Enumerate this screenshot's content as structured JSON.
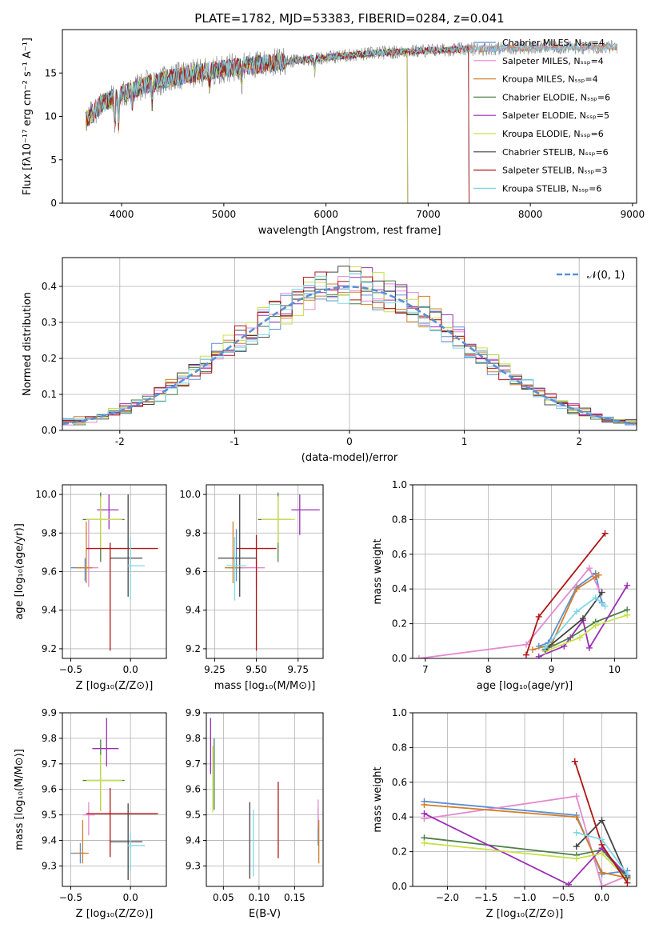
{
  "figure": {
    "title": "PLATE=1782, MJD=53383, FIBERID=0284, z=0.041"
  },
  "colors": {
    "Chabrier MILES": "#5b8fd6",
    "Salpeter MILES": "#e38ad0",
    "Kroupa MILES": "#d1802a",
    "Chabrier ELODIE": "#4a7f4a",
    "Salpeter ELODIE": "#9b2fb4",
    "Kroupa ELODIE": "#c9e04a",
    "Chabrier STELIB": "#444444",
    "Salpeter STELIB": "#b01515",
    "Kroupa STELIB": "#7dd8e6",
    "gaussian": "#5b8fd6",
    "data": "#808080"
  },
  "chart_data": [
    {
      "id": "spectrum",
      "type": "line",
      "xlabel": "wavelength [Angstrom, rest frame]",
      "ylabel": "Flux [fλ10⁻¹⁷ erg cm⁻² s⁻¹ A⁻¹]",
      "xlim": [
        3420,
        9040
      ],
      "ylim": [
        0,
        20
      ],
      "xticks": [
        4000,
        5000,
        6000,
        7000,
        8000,
        9000
      ],
      "yticks": [
        0,
        5,
        10,
        15
      ],
      "grid": false,
      "legend_position": "top-right",
      "series": [
        {
          "name": "Chabrier MILES, Nₛₛₚ=4",
          "key": "Chabrier MILES",
          "range": [
            3650,
            8850
          ]
        },
        {
          "name": "Salpeter MILES, Nₛₛₚ=4",
          "key": "Salpeter MILES",
          "range": [
            3650,
            8850
          ]
        },
        {
          "name": "Kroupa MILES, Nₛₛₚ=4",
          "key": "Kroupa MILES",
          "range": [
            3650,
            8850
          ]
        },
        {
          "name": "Chabrier ELODIE, Nₛₛₚ=6",
          "key": "Chabrier ELODIE",
          "range": [
            3650,
            6800
          ]
        },
        {
          "name": "Salpeter ELODIE, Nₛₛₚ=5",
          "key": "Salpeter ELODIE",
          "range": [
            3650,
            6800
          ]
        },
        {
          "name": "Kroupa ELODIE, Nₛₛₚ=6",
          "key": "Kroupa ELODIE",
          "range": [
            3650,
            6800
          ]
        },
        {
          "name": "Chabrier STELIB, Nₛₛₚ=6",
          "key": "Chabrier STELIB",
          "range": [
            3650,
            7400
          ]
        },
        {
          "name": "Salpeter STELIB, Nₛₛₚ=3",
          "key": "Salpeter STELIB",
          "range": [
            3650,
            7400
          ]
        },
        {
          "name": "Kroupa STELIB, Nₛₛₚ=6",
          "key": "Kroupa STELIB",
          "range": [
            3650,
            8850
          ]
        }
      ],
      "continuum": [
        [
          3650,
          9.5
        ],
        [
          3800,
          11.5
        ],
        [
          4000,
          12.5
        ],
        [
          4200,
          13.5
        ],
        [
          4500,
          14.5
        ],
        [
          5000,
          15.5
        ],
        [
          5500,
          16.2
        ],
        [
          6000,
          16.8
        ],
        [
          6500,
          17.3
        ],
        [
          7000,
          17.6
        ],
        [
          7500,
          17.8
        ],
        [
          8000,
          17.9
        ],
        [
          8850,
          18.0
        ]
      ]
    },
    {
      "id": "residuals",
      "type": "line",
      "xlabel": "(data-model)/error",
      "ylabel": "Normed distribution",
      "xlim": [
        -2.5,
        2.5
      ],
      "ylim": [
        0,
        0.48
      ],
      "xticks": [
        -2,
        -1,
        0,
        1,
        2
      ],
      "yticks": [
        0.0,
        0.1,
        0.2,
        0.3,
        0.4
      ],
      "grid": true,
      "legend_position": "top-right",
      "legend": "𝒩(0, 1)",
      "bin_width": 0.1
    },
    {
      "id": "age-vs-z",
      "type": "scatter",
      "xlabel": "Z [log₁₀(Z/Z⊙)]",
      "ylabel": "age  [log₁₀(age/yr)]",
      "xlim": [
        -0.57,
        0.3
      ],
      "ylim": [
        9.15,
        10.05
      ],
      "xticks": [
        -0.5,
        0.0
      ],
      "yticks": [
        9.2,
        9.4,
        9.6,
        9.8,
        10.0
      ],
      "grid": true,
      "points": [
        {
          "key": "Chabrier MILES",
          "x": -0.38,
          "y": 9.62,
          "xerr": [
            0.12,
            0.05
          ],
          "yerr": [
            0.07,
            0.05
          ]
        },
        {
          "key": "Salpeter MILES",
          "x": -0.35,
          "y": 9.62,
          "xerr": [
            0.05,
            0.08
          ],
          "yerr": [
            0.1,
            0.25
          ]
        },
        {
          "key": "Kroupa MILES",
          "x": -0.37,
          "y": 9.62,
          "xerr": [
            0.08,
            0.05
          ],
          "yerr": [
            0.08,
            0.24
          ]
        },
        {
          "key": "Chabrier ELODIE",
          "x": -0.25,
          "y": 9.87,
          "xerr": [
            0.15,
            0.2
          ],
          "yerr": [
            0.22,
            0.14
          ]
        },
        {
          "key": "Salpeter ELODIE",
          "x": -0.18,
          "y": 9.92,
          "xerr": [
            0.1,
            0.08
          ],
          "yerr": [
            0.1,
            0.08
          ]
        },
        {
          "key": "Kroupa ELODIE",
          "x": -0.25,
          "y": 9.87,
          "xerr": [
            0.12,
            0.18
          ],
          "yerr": [
            0.15,
            0.12
          ]
        },
        {
          "key": "Chabrier STELIB",
          "x": -0.02,
          "y": 9.67,
          "xerr": [
            0.15,
            0.12
          ],
          "yerr": [
            0.2,
            0.33
          ]
        },
        {
          "key": "Salpeter STELIB",
          "x": -0.17,
          "y": 9.72,
          "xerr": [
            0.2,
            0.4
          ],
          "yerr": [
            0.53,
            0.03
          ]
        },
        {
          "key": "Kroupa STELIB",
          "x": 0.0,
          "y": 9.63,
          "xerr": [
            0.03,
            0.12
          ],
          "yerr": [
            0.18,
            0.15
          ]
        }
      ]
    },
    {
      "id": "age-vs-mass",
      "type": "scatter",
      "xlabel": "mass [log₁₀(M/M⊙)]",
      "ylabel": "",
      "xlim": [
        9.2,
        9.9
      ],
      "ylim": [
        9.15,
        10.05
      ],
      "xticks": [
        9.25,
        9.5,
        9.75
      ],
      "yticks": [
        9.2,
        9.4,
        9.6,
        9.8,
        10.0
      ],
      "grid": true,
      "points": [
        {
          "key": "Chabrier MILES",
          "x": 9.38,
          "y": 9.62,
          "xerr": [
            0.05,
            0.05
          ],
          "yerr": [
            0.07,
            0.2
          ]
        },
        {
          "key": "Salpeter MILES",
          "x": 9.5,
          "y": 9.62,
          "xerr": [
            0.12,
            0.05
          ],
          "yerr": [
            0.1,
            0.05
          ]
        },
        {
          "key": "Kroupa MILES",
          "x": 9.36,
          "y": 9.62,
          "xerr": [
            0.05,
            0.05
          ],
          "yerr": [
            0.08,
            0.24
          ]
        },
        {
          "key": "Chabrier ELODIE",
          "x": 9.63,
          "y": 9.87,
          "xerr": [
            0.12,
            0.08
          ],
          "yerr": [
            0.22,
            0.14
          ]
        },
        {
          "key": "Salpeter ELODIE",
          "x": 9.76,
          "y": 9.92,
          "xerr": [
            0.05,
            0.12
          ],
          "yerr": [
            0.13,
            0.08
          ]
        },
        {
          "key": "Kroupa ELODIE",
          "x": 9.63,
          "y": 9.87,
          "xerr": [
            0.1,
            0.1
          ],
          "yerr": [
            0.12,
            0.12
          ]
        },
        {
          "key": "Chabrier STELIB",
          "x": 9.4,
          "y": 9.67,
          "xerr": [
            0.13,
            0.1
          ],
          "yerr": [
            0.2,
            0.33
          ]
        },
        {
          "key": "Salpeter STELIB",
          "x": 9.5,
          "y": 9.72,
          "xerr": [
            0.12,
            0.12
          ],
          "yerr": [
            0.53,
            0.07
          ]
        },
        {
          "key": "Kroupa STELIB",
          "x": 9.37,
          "y": 9.63,
          "xerr": [
            0.05,
            0.07
          ],
          "yerr": [
            0.18,
            0.15
          ]
        }
      ]
    },
    {
      "id": "weight-vs-age",
      "type": "line",
      "xlabel": "age  [log₁₀(age/yr)]",
      "ylabel": "mass weight",
      "xlim": [
        6.8,
        10.35
      ],
      "ylim": [
        0,
        1.0
      ],
      "xticks": [
        7,
        8,
        9,
        10
      ],
      "yticks": [
        0.0,
        0.2,
        0.4,
        0.6,
        0.8,
        1.0
      ],
      "grid": true,
      "series": [
        {
          "key": "Chabrier MILES",
          "x": [
            8.8,
            8.95,
            9.4,
            9.7,
            9.8
          ],
          "y": [
            0.07,
            0.09,
            0.41,
            0.49,
            0.32
          ]
        },
        {
          "key": "Salpeter MILES",
          "x": [
            6.9,
            8.6,
            9.6,
            9.75
          ],
          "y": [
            0.0,
            0.08,
            0.52,
            0.4
          ]
        },
        {
          "key": "Kroupa MILES",
          "x": [
            8.7,
            9.0,
            9.4,
            9.7,
            9.75
          ],
          "y": [
            0.05,
            0.08,
            0.4,
            0.47,
            0.48
          ]
        },
        {
          "key": "Chabrier ELODIE",
          "x": [
            8.9,
            9.3,
            9.7,
            10.2
          ],
          "y": [
            0.05,
            0.12,
            0.21,
            0.28
          ]
        },
        {
          "key": "Salpeter ELODIE",
          "x": [
            8.8,
            9.2,
            9.5,
            9.6,
            10.2
          ],
          "y": [
            0.01,
            0.07,
            0.22,
            0.06,
            0.42
          ]
        },
        {
          "key": "Kroupa ELODIE",
          "x": [
            8.9,
            9.45,
            9.7,
            10.2
          ],
          "y": [
            0.04,
            0.12,
            0.19,
            0.25
          ]
        },
        {
          "key": "Chabrier STELIB",
          "x": [
            8.9,
            9.5,
            9.8
          ],
          "y": [
            0.05,
            0.23,
            0.38
          ]
        },
        {
          "key": "Salpeter STELIB",
          "x": [
            8.6,
            8.8,
            9.85
          ],
          "y": [
            0.02,
            0.24,
            0.72
          ]
        },
        {
          "key": "Kroupa STELIB",
          "x": [
            8.9,
            9.4,
            9.7,
            9.85
          ],
          "y": [
            0.06,
            0.27,
            0.35,
            0.3
          ]
        }
      ]
    },
    {
      "id": "mass-vs-z",
      "type": "scatter",
      "xlabel": "Z [log₁₀(Z/Z⊙)]",
      "ylabel": "mass [log₁₀(M/M⊙)]",
      "xlim": [
        -0.57,
        0.3
      ],
      "ylim": [
        9.22,
        9.9
      ],
      "xticks": [
        -0.5,
        0.0
      ],
      "yticks": [
        9.3,
        9.4,
        9.5,
        9.6,
        9.7,
        9.8,
        9.9
      ],
      "grid": true,
      "points": [
        {
          "key": "Chabrier MILES",
          "x": -0.42,
          "y": 9.35,
          "xerr": [
            0.08,
            0.05
          ],
          "yerr": [
            0.04,
            0.04
          ]
        },
        {
          "key": "Salpeter MILES",
          "x": -0.35,
          "y": 9.5,
          "xerr": [
            0.05,
            0.05
          ],
          "yerr": [
            0.08,
            0.05
          ]
        },
        {
          "key": "Kroupa MILES",
          "x": -0.4,
          "y": 9.35,
          "xerr": [
            0.07,
            0.05
          ],
          "yerr": [
            0.04,
            0.13
          ]
        },
        {
          "key": "Chabrier ELODIE",
          "x": -0.25,
          "y": 9.635,
          "xerr": [
            0.15,
            0.2
          ],
          "yerr": [
            0.12,
            0.16
          ]
        },
        {
          "key": "Salpeter ELODIE",
          "x": -0.2,
          "y": 9.76,
          "xerr": [
            0.12,
            0.1
          ],
          "yerr": [
            0.07,
            0.12
          ]
        },
        {
          "key": "Kroupa ELODIE",
          "x": -0.25,
          "y": 9.635,
          "xerr": [
            0.12,
            0.18
          ],
          "yerr": [
            0.12,
            0.1
          ]
        },
        {
          "key": "Chabrier STELIB",
          "x": -0.02,
          "y": 9.395,
          "xerr": [
            0.15,
            0.12
          ],
          "yerr": [
            0.15,
            0.15
          ]
        },
        {
          "key": "Salpeter STELIB",
          "x": -0.17,
          "y": 9.505,
          "xerr": [
            0.2,
            0.4
          ],
          "yerr": [
            0.17,
            0.1
          ]
        },
        {
          "key": "Kroupa STELIB",
          "x": 0.0,
          "y": 9.38,
          "xerr": [
            0.03,
            0.12
          ],
          "yerr": [
            0.1,
            0.05
          ]
        }
      ]
    },
    {
      "id": "mass-vs-ebv",
      "type": "scatter",
      "xlabel": "E(B-V)",
      "ylabel": "",
      "xlim": [
        0.026,
        0.19
      ],
      "ylim": [
        9.22,
        9.9
      ],
      "xticks": [
        0.05,
        0.1,
        0.15
      ],
      "yticks": [
        9.3,
        9.4,
        9.5,
        9.6,
        9.7,
        9.8,
        9.9
      ],
      "grid": true,
      "points": [
        {
          "key": "Chabrier MILES",
          "x": 0.183,
          "y": 9.45,
          "xerr": [
            0,
            0
          ],
          "yerr": [
            0.07,
            0.08
          ]
        },
        {
          "key": "Salpeter MILES",
          "x": 0.183,
          "y": 9.5,
          "xerr": [
            0,
            0
          ],
          "yerr": [
            0.05,
            0.06
          ]
        },
        {
          "key": "Kroupa MILES",
          "x": 0.184,
          "y": 9.4,
          "xerr": [
            0,
            0
          ],
          "yerr": [
            0.09,
            0.08
          ]
        },
        {
          "key": "Chabrier ELODIE",
          "x": 0.037,
          "y": 9.65,
          "xerr": [
            0,
            0
          ],
          "yerr": [
            0.13,
            0.15
          ]
        },
        {
          "key": "Salpeter ELODIE",
          "x": 0.032,
          "y": 9.76,
          "xerr": [
            0,
            0
          ],
          "yerr": [
            0.1,
            0.12
          ]
        },
        {
          "key": "Kroupa ELODIE",
          "x": 0.035,
          "y": 9.63,
          "xerr": [
            0,
            0
          ],
          "yerr": [
            0.12,
            0.14
          ]
        },
        {
          "key": "Chabrier STELIB",
          "x": 0.087,
          "y": 9.4,
          "xerr": [
            0,
            0
          ],
          "yerr": [
            0.15,
            0.15
          ]
        },
        {
          "key": "Salpeter STELIB",
          "x": 0.127,
          "y": 9.48,
          "xerr": [
            0,
            0
          ],
          "yerr": [
            0.15,
            0.15
          ]
        },
        {
          "key": "Kroupa STELIB",
          "x": 0.092,
          "y": 9.38,
          "xerr": [
            0,
            0
          ],
          "yerr": [
            0.12,
            0.14
          ]
        }
      ]
    },
    {
      "id": "weight-vs-z",
      "type": "line",
      "xlabel": "Z [log₁₀(Z/Z⊙)]",
      "ylabel": "mass weight",
      "xlim": [
        -2.45,
        0.45
      ],
      "ylim": [
        0,
        1.0
      ],
      "xticks": [
        -2.0,
        -1.5,
        -1.0,
        -0.5,
        0.0
      ],
      "yticks": [
        0.0,
        0.2,
        0.4,
        0.6,
        0.8,
        1.0
      ],
      "grid": true,
      "series": [
        {
          "key": "Chabrier MILES",
          "x": [
            -2.3,
            -0.33,
            0.0,
            0.33
          ],
          "y": [
            0.49,
            0.41,
            0.07,
            0.09
          ]
        },
        {
          "key": "Salpeter MILES",
          "x": [
            -2.3,
            -0.33,
            0.0,
            0.33
          ],
          "y": [
            0.39,
            0.52,
            0.0,
            0.06
          ]
        },
        {
          "key": "Kroupa MILES",
          "x": [
            -2.3,
            -0.33,
            0.0,
            0.33
          ],
          "y": [
            0.47,
            0.4,
            0.08,
            0.05
          ]
        },
        {
          "key": "Chabrier ELODIE",
          "x": [
            -2.3,
            -0.33,
            0.0,
            0.33
          ],
          "y": [
            0.28,
            0.18,
            0.21,
            0.05
          ]
        },
        {
          "key": "Salpeter ELODIE",
          "x": [
            -2.3,
            -0.43,
            0.0,
            0.33
          ],
          "y": [
            0.42,
            0.01,
            0.22,
            0.06
          ]
        },
        {
          "key": "Kroupa ELODIE",
          "x": [
            -2.3,
            -0.33,
            0.0,
            0.33
          ],
          "y": [
            0.25,
            0.16,
            0.19,
            0.04
          ]
        },
        {
          "key": "Chabrier STELIB",
          "x": [
            -0.33,
            0.0,
            0.33
          ],
          "y": [
            0.23,
            0.38,
            0.05
          ]
        },
        {
          "key": "Salpeter STELIB",
          "x": [
            -0.35,
            0.0,
            0.33
          ],
          "y": [
            0.72,
            0.24,
            0.02
          ]
        },
        {
          "key": "Kroupa STELIB",
          "x": [
            -0.33,
            0.0,
            0.33
          ],
          "y": [
            0.31,
            0.27,
            0.07
          ]
        }
      ]
    }
  ]
}
